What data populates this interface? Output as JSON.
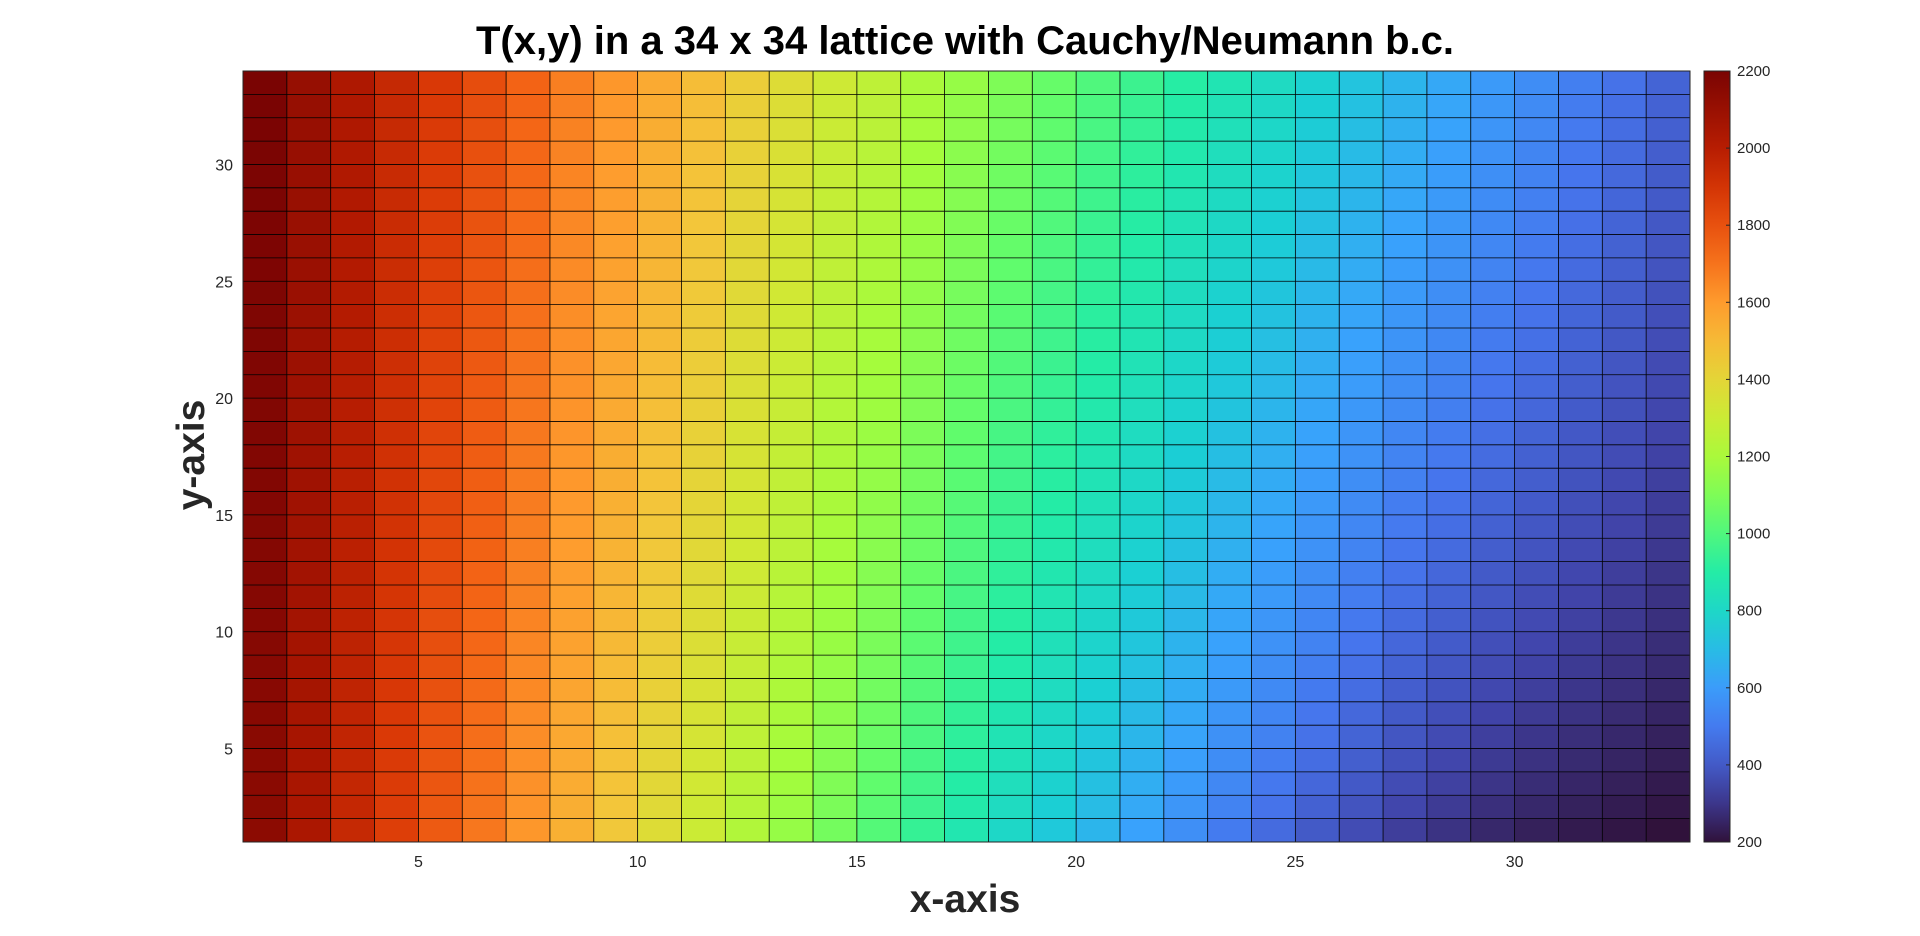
{
  "chart_data": {
    "type": "heatmap",
    "title": "T(x,y) in a 34 x 34 lattice with Cauchy/Neumann b.c.",
    "xlabel": "x-axis",
    "ylabel": "y-axis",
    "grid_size": [
      34,
      34
    ],
    "xlim": [
      1,
      34
    ],
    "ylim": [
      1,
      34
    ],
    "x_ticks": [
      5,
      10,
      15,
      20,
      25,
      30
    ],
    "y_ticks": [
      5,
      10,
      15,
      20,
      25,
      30
    ],
    "colorbar": {
      "colormap": "turbo",
      "clim": [
        200,
        2200
      ],
      "ticks": [
        200,
        400,
        600,
        800,
        1000,
        1200,
        1400,
        1600,
        1800,
        2000,
        2200
      ]
    },
    "grid_lines": true,
    "grid_line_color": "#000000",
    "values_description_columns": {
      "x": [
        1,
        2,
        3,
        4,
        5,
        6,
        7,
        8,
        9,
        10,
        11,
        12,
        13,
        14,
        15,
        16,
        17,
        18,
        19,
        20,
        21,
        22,
        23,
        24,
        25,
        26,
        27,
        28,
        29,
        30,
        31,
        32,
        33
      ],
      "value_top": [
        2200,
        2110,
        2030,
        1950,
        1880,
        1810,
        1740,
        1670,
        1610,
        1550,
        1490,
        1430,
        1370,
        1310,
        1260,
        1200,
        1150,
        1100,
        1050,
        1000,
        955,
        905,
        860,
        815,
        770,
        725,
        680,
        640,
        595,
        555,
        510,
        470,
        430
      ],
      "value_bottom": [
        2140,
        2040,
        1950,
        1860,
        1770,
        1690,
        1610,
        1530,
        1450,
        1370,
        1300,
        1220,
        1150,
        1080,
        1010,
        940,
        870,
        800,
        740,
        680,
        620,
        560,
        500,
        450,
        400,
        360,
        320,
        290,
        260,
        240,
        225,
        212,
        200
      ]
    }
  }
}
